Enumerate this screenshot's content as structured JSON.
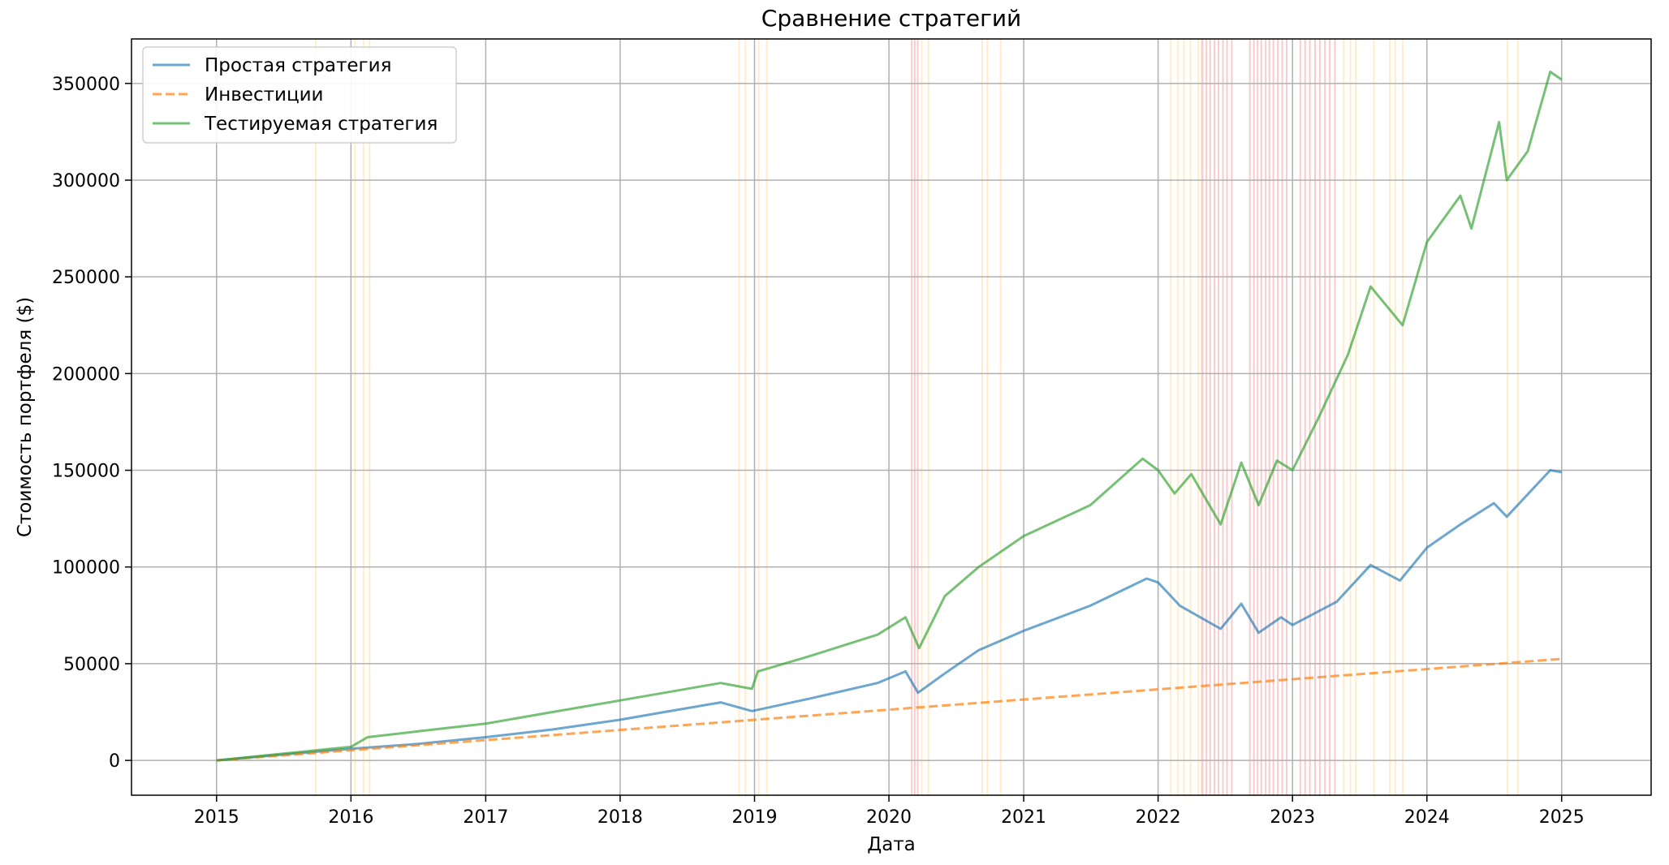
{
  "chart_data": {
    "type": "line",
    "title": "Сравнение стратегий",
    "xlabel": "Дата",
    "ylabel": "Стоимость портфеля ($)",
    "xlim": [
      "2014-05-15",
      "2025-09-01"
    ],
    "ylim": [
      -18000,
      373000
    ],
    "x_ticks": [
      "2015",
      "2016",
      "2017",
      "2018",
      "2019",
      "2020",
      "2021",
      "2022",
      "2023",
      "2024",
      "2025"
    ],
    "y_ticks": [
      0,
      50000,
      100000,
      150000,
      200000,
      250000,
      300000,
      350000
    ],
    "grid": true,
    "legend_position": "top-left",
    "series": [
      {
        "name": "Простая стратегия",
        "color": "#1f77b4",
        "style": "solid",
        "points": [
          [
            "2015-01-01",
            0
          ],
          [
            "2015-07-01",
            3000
          ],
          [
            "2016-01-01",
            6000
          ],
          [
            "2016-07-01",
            8500
          ],
          [
            "2017-01-01",
            12000
          ],
          [
            "2017-07-01",
            16000
          ],
          [
            "2018-01-01",
            21000
          ],
          [
            "2018-04-01",
            24000
          ],
          [
            "2018-10-01",
            30000
          ],
          [
            "2018-12-25",
            25500
          ],
          [
            "2019-06-01",
            32000
          ],
          [
            "2019-12-01",
            40000
          ],
          [
            "2020-02-15",
            46000
          ],
          [
            "2020-03-20",
            35000
          ],
          [
            "2020-06-01",
            45000
          ],
          [
            "2020-09-01",
            57000
          ],
          [
            "2021-01-01",
            67000
          ],
          [
            "2021-07-01",
            80000
          ],
          [
            "2021-12-01",
            94000
          ],
          [
            "2022-01-01",
            92000
          ],
          [
            "2022-03-01",
            80000
          ],
          [
            "2022-06-20",
            68000
          ],
          [
            "2022-08-15",
            81000
          ],
          [
            "2022-10-01",
            66000
          ],
          [
            "2022-12-01",
            74000
          ],
          [
            "2023-01-01",
            70000
          ],
          [
            "2023-05-01",
            82000
          ],
          [
            "2023-08-01",
            101000
          ],
          [
            "2023-10-20",
            93000
          ],
          [
            "2024-01-01",
            110000
          ],
          [
            "2024-04-01",
            122000
          ],
          [
            "2024-07-01",
            133000
          ],
          [
            "2024-08-05",
            126000
          ],
          [
            "2024-12-01",
            150000
          ],
          [
            "2025-01-01",
            149000
          ]
        ]
      },
      {
        "name": "Инвестиции",
        "color": "#ff7f0e",
        "style": "dashed",
        "points": [
          [
            "2015-01-01",
            0
          ],
          [
            "2025-01-01",
            52500
          ]
        ]
      },
      {
        "name": "Тестируемая стратегия",
        "color": "#2ca02c",
        "style": "solid",
        "points": [
          [
            "2015-01-01",
            0
          ],
          [
            "2015-07-01",
            3500
          ],
          [
            "2016-01-01",
            7000
          ],
          [
            "2016-02-15",
            12000
          ],
          [
            "2016-07-01",
            15000
          ],
          [
            "2017-01-01",
            19000
          ],
          [
            "2017-07-01",
            25000
          ],
          [
            "2018-01-01",
            31000
          ],
          [
            "2018-06-01",
            36000
          ],
          [
            "2018-10-01",
            40000
          ],
          [
            "2018-12-25",
            37000
          ],
          [
            "2019-01-10",
            46000
          ],
          [
            "2019-06-01",
            54000
          ],
          [
            "2019-12-01",
            65000
          ],
          [
            "2020-02-15",
            74000
          ],
          [
            "2020-03-23",
            58000
          ],
          [
            "2020-06-01",
            85000
          ],
          [
            "2020-09-01",
            100000
          ],
          [
            "2021-01-01",
            116000
          ],
          [
            "2021-07-01",
            132000
          ],
          [
            "2021-11-20",
            156000
          ],
          [
            "2022-01-01",
            150000
          ],
          [
            "2022-02-15",
            138000
          ],
          [
            "2022-04-01",
            148000
          ],
          [
            "2022-06-20",
            122000
          ],
          [
            "2022-08-15",
            154000
          ],
          [
            "2022-10-01",
            132000
          ],
          [
            "2022-11-20",
            155000
          ],
          [
            "2023-01-01",
            150000
          ],
          [
            "2023-03-15",
            178000
          ],
          [
            "2023-06-01",
            210000
          ],
          [
            "2023-08-01",
            245000
          ],
          [
            "2023-10-27",
            225000
          ],
          [
            "2024-01-01",
            268000
          ],
          [
            "2024-04-01",
            292000
          ],
          [
            "2024-05-01",
            275000
          ],
          [
            "2024-07-15",
            330000
          ],
          [
            "2024-08-05",
            300000
          ],
          [
            "2024-10-01",
            315000
          ],
          [
            "2024-12-01",
            356000
          ],
          [
            "2025-01-01",
            352000
          ]
        ]
      }
    ],
    "highlight_bands": [
      {
        "color": "#ffcc66",
        "ranges": [
          [
            "2015-09-25",
            "2015-09-29"
          ],
          [
            "2016-01-10",
            "2016-01-14"
          ],
          [
            "2016-02-02",
            "2016-02-06"
          ],
          [
            "2016-02-18",
            "2016-02-22"
          ],
          [
            "2018-11-18",
            "2018-11-22"
          ],
          [
            "2018-12-05",
            "2018-12-09"
          ],
          [
            "2019-01-10",
            "2019-01-14"
          ],
          [
            "2019-02-01",
            "2019-02-05"
          ],
          [
            "2020-03-28",
            "2020-04-01"
          ],
          [
            "2020-04-15",
            "2020-04-19"
          ],
          [
            "2020-09-08",
            "2020-09-12"
          ],
          [
            "2020-09-22",
            "2020-09-26"
          ],
          [
            "2020-10-28",
            "2020-11-01"
          ],
          [
            "2022-02-02",
            "2022-02-06"
          ],
          [
            "2022-02-22",
            "2022-02-26"
          ],
          [
            "2022-03-10",
            "2022-03-14"
          ],
          [
            "2022-03-28",
            "2022-04-01"
          ],
          [
            "2022-04-18",
            "2022-04-22"
          ],
          [
            "2023-05-18",
            "2023-05-22"
          ],
          [
            "2023-06-05",
            "2023-06-09"
          ],
          [
            "2023-06-20",
            "2023-06-24"
          ],
          [
            "2023-08-08",
            "2023-08-12"
          ],
          [
            "2023-09-20",
            "2023-09-24"
          ],
          [
            "2023-10-05",
            "2023-10-09"
          ],
          [
            "2023-10-25",
            "2023-10-29"
          ],
          [
            "2024-08-05",
            "2024-08-09"
          ],
          [
            "2024-09-02",
            "2024-09-06"
          ]
        ]
      },
      {
        "color": "#f08080",
        "ranges": [
          [
            "2020-03-01",
            "2020-03-05"
          ],
          [
            "2020-03-09",
            "2020-03-13"
          ],
          [
            "2020-03-17",
            "2020-03-21"
          ],
          [
            "2022-04-28",
            "2022-05-04"
          ],
          [
            "2022-05-10",
            "2022-05-14"
          ],
          [
            "2022-05-20",
            "2022-05-24"
          ],
          [
            "2022-06-01",
            "2022-06-05"
          ],
          [
            "2022-06-12",
            "2022-06-16"
          ],
          [
            "2022-06-24",
            "2022-06-28"
          ],
          [
            "2022-07-05",
            "2022-07-09"
          ],
          [
            "2022-07-18",
            "2022-07-22"
          ],
          [
            "2022-09-05",
            "2022-09-09"
          ],
          [
            "2022-09-16",
            "2022-09-20"
          ],
          [
            "2022-09-26",
            "2022-09-30"
          ],
          [
            "2022-10-06",
            "2022-10-10"
          ],
          [
            "2022-10-18",
            "2022-10-22"
          ],
          [
            "2022-10-28",
            "2022-11-01"
          ],
          [
            "2022-11-08",
            "2022-11-12"
          ],
          [
            "2022-11-20",
            "2022-11-24"
          ],
          [
            "2022-12-02",
            "2022-12-06"
          ],
          [
            "2022-12-14",
            "2022-12-18"
          ],
          [
            "2023-01-20",
            "2023-01-24"
          ],
          [
            "2023-02-02",
            "2023-02-06"
          ],
          [
            "2023-02-15",
            "2023-02-19"
          ],
          [
            "2023-03-01",
            "2023-03-05"
          ],
          [
            "2023-03-14",
            "2023-03-18"
          ],
          [
            "2023-03-28",
            "2023-04-01"
          ],
          [
            "2023-04-10",
            "2023-04-14"
          ],
          [
            "2023-04-24",
            "2023-04-28"
          ]
        ]
      }
    ]
  }
}
